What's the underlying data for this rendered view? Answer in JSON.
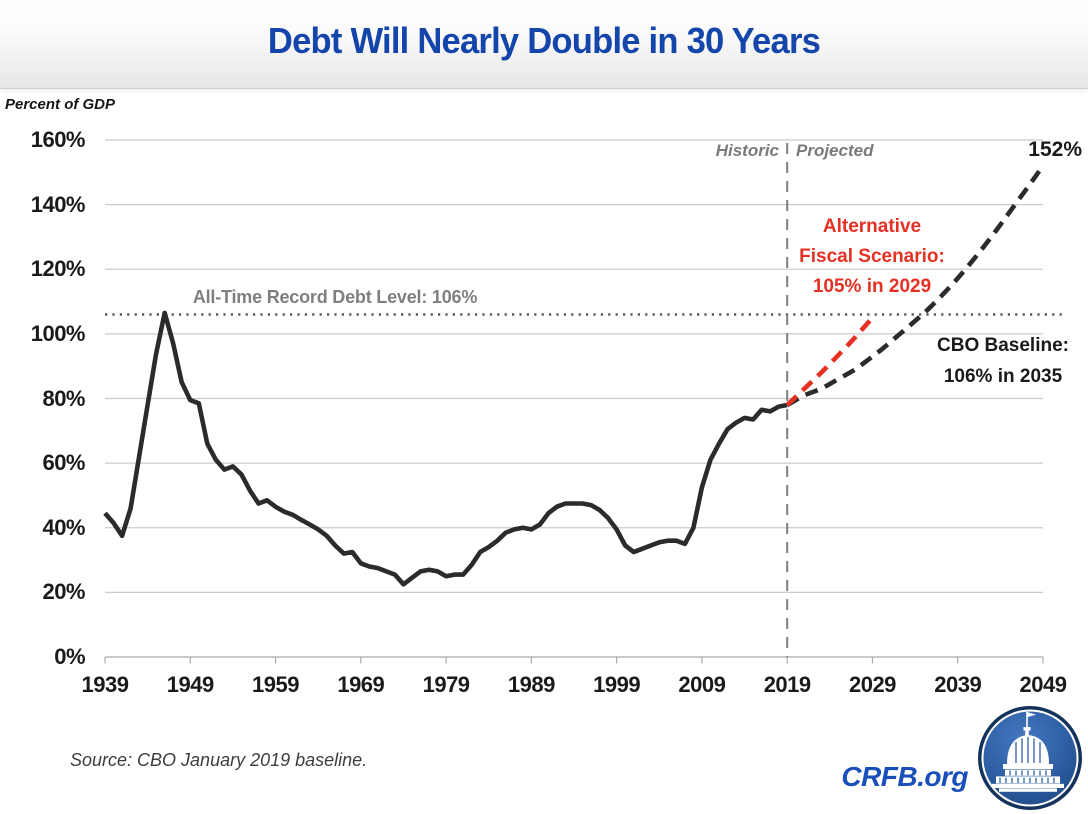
{
  "page": {
    "title": "Debt Will Nearly Double in 30 Years"
  },
  "chart_header": {
    "unit_label": "Percent of GDP"
  },
  "annotations": {
    "divider_left": "Historic",
    "divider_right": "Projected",
    "record_line": "All-Time Record Debt Level: 106%",
    "alt_scenario": {
      "line1": "Alternative",
      "line2": "Fiscal Scenario:",
      "line3": "105% in 2029"
    },
    "cbo_baseline": {
      "line1": "CBO Baseline:",
      "line2": "106% in 2035"
    },
    "endpoint": "152%"
  },
  "footer": {
    "source": "Source: CBO January 2019 baseline.",
    "site": "CRFB.org",
    "logo_icon": "crfb-capitol-logo"
  },
  "colors": {
    "title_blue": "#1445AB",
    "crfb_blue": "#1A4FBB",
    "historic_line": "#2B2B2B",
    "baseline_line": "#2B2B2B",
    "alternative_line": "#E53123",
    "gridline": "#CBCBCB",
    "axis_line": "#ABABAB",
    "record_dotted": "#595959",
    "divider_gray": "#7F7F7F",
    "annotation_gray": "#7F7F7F",
    "logo_navy": "#14335C",
    "logo_blue": "#2E5FA5"
  },
  "chart_data": {
    "type": "line",
    "title": "Debt Will Nearly Double in 30 Years",
    "xlabel": "",
    "ylabel": "Percent of GDP",
    "ylim": [
      0,
      160
    ],
    "xlim": [
      1939,
      2049
    ],
    "grid": "horizontal",
    "legend_position": "none",
    "y_ticks": [
      "0%",
      "20%",
      "40%",
      "60%",
      "80%",
      "100%",
      "120%",
      "140%",
      "160%"
    ],
    "y_tick_values": [
      0,
      20,
      40,
      60,
      80,
      100,
      120,
      140,
      160
    ],
    "x_ticks": [
      1939,
      1949,
      1959,
      1969,
      1979,
      1989,
      1999,
      2009,
      2019,
      2029,
      2039,
      2049
    ],
    "reference_line": {
      "value": 106,
      "label": "All-Time Record Debt Level: 106%"
    },
    "divider": {
      "x": 2019,
      "left_label": "Historic",
      "right_label": "Projected"
    },
    "series": [
      {
        "key": "historic",
        "name": "Historic",
        "style": "solid",
        "color": "#2B2B2B",
        "start_year": 1939,
        "values": [
          44.5,
          41.5,
          37.5,
          46,
          62,
          78,
          94,
          106.5,
          97,
          85,
          79.5,
          78.5,
          66,
          61,
          58,
          59,
          56.5,
          51.5,
          47.5,
          48.5,
          46.5,
          45,
          44,
          42.5,
          41,
          39.5,
          37.5,
          34.5,
          32,
          32.5,
          29,
          28,
          27.5,
          26.5,
          25.5,
          22.5,
          24.5,
          26.5,
          27,
          26.5,
          25,
          25.5,
          25.5,
          28.5,
          32.5,
          34,
          36,
          38.5,
          39.5,
          40,
          39.5,
          41,
          44.5,
          46.5,
          47.5,
          47.5,
          47.5,
          47,
          45.5,
          43,
          39.5,
          34.5,
          32.5,
          33.5,
          34.5,
          35.5,
          36,
          36,
          35,
          40,
          52.5,
          61,
          66,
          70.5,
          72.5,
          74,
          73.5,
          76.5,
          76,
          77.5,
          78
        ]
      },
      {
        "key": "cbo-baseline",
        "name": "CBO Baseline: 106% in 2035",
        "style": "dashed",
        "color": "#2B2B2B",
        "start_year": 2019,
        "values": [
          78,
          79.5,
          81,
          82,
          83,
          84.5,
          86,
          87.5,
          89,
          91,
          93,
          95,
          97.2,
          99.5,
          101.7,
          104,
          106.3,
          108.8,
          111.5,
          114.3,
          117.2,
          120.3,
          123.5,
          126.8,
          130.2,
          133.8,
          137.4,
          141,
          144.6,
          148.3,
          152
        ]
      },
      {
        "key": "alternative-scenario",
        "name": "Alternative Fiscal Scenario: 105% in 2029",
        "style": "dashed",
        "color": "#E53123",
        "start_year": 2019,
        "values": [
          78,
          80.5,
          83,
          85.5,
          88,
          90.7,
          93.4,
          96.2,
          99,
          102,
          105
        ]
      }
    ]
  }
}
